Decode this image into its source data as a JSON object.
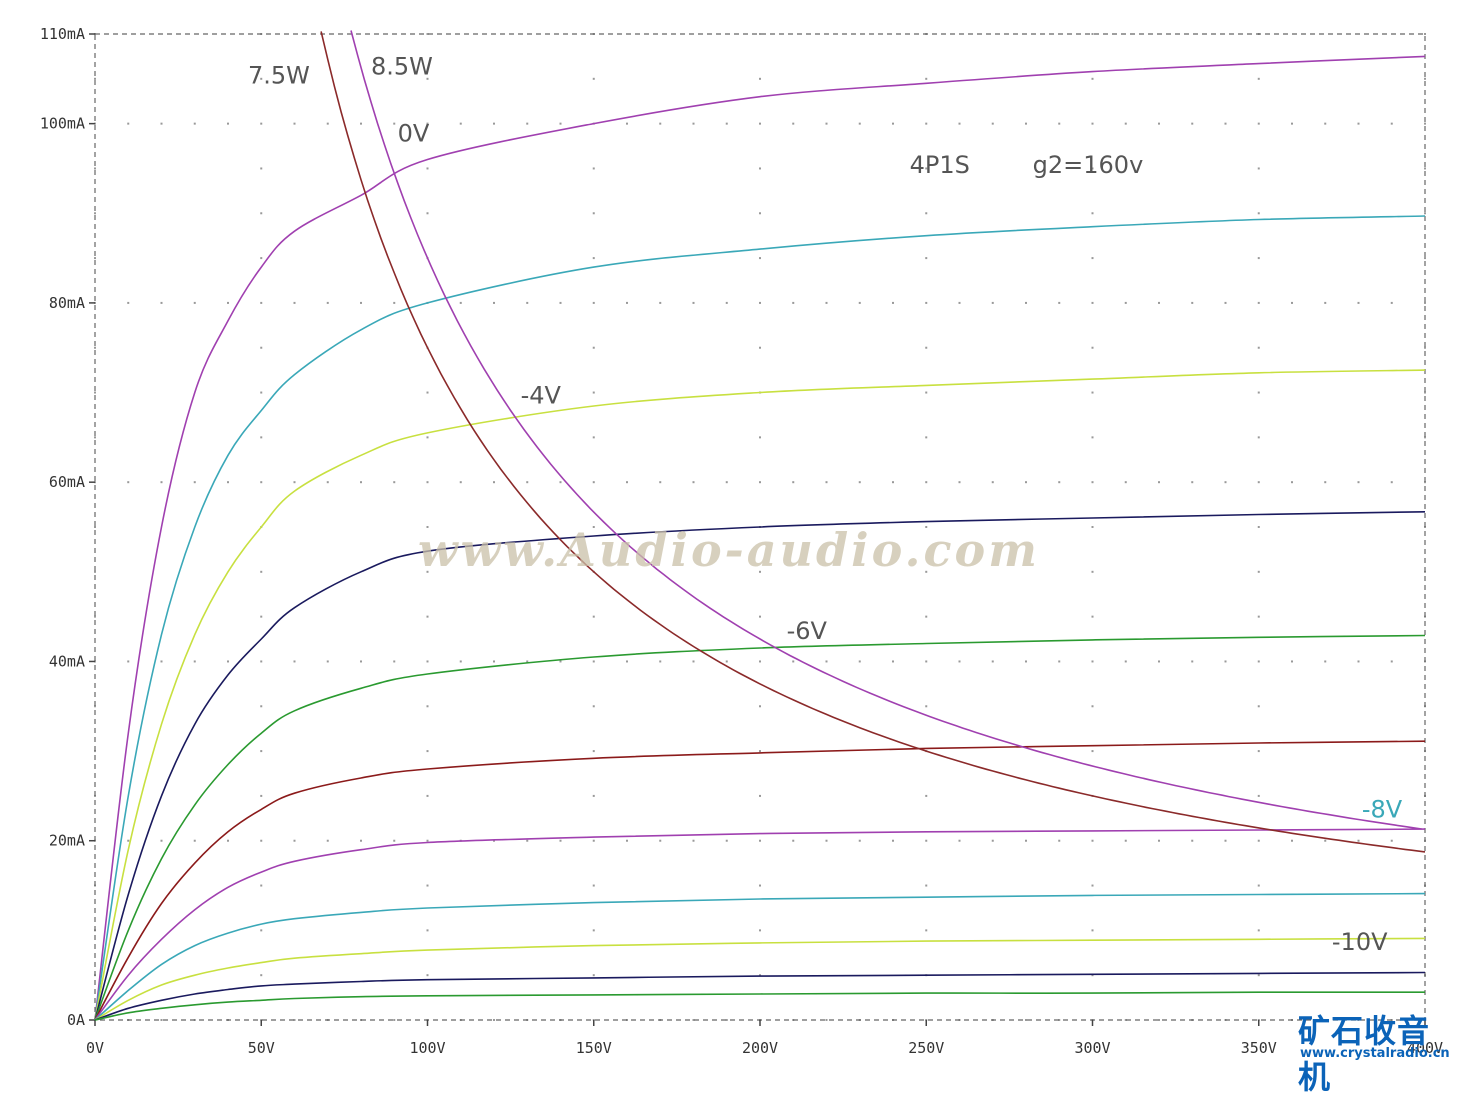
{
  "chart_data": {
    "type": "line",
    "title": "4P1S",
    "subtitle": "g2=160v",
    "xlabel": "",
    "ylabel": "",
    "xlim": [
      0,
      400
    ],
    "ylim": [
      0,
      110
    ],
    "x_ticks": [
      "0V",
      "50V",
      "100V",
      "150V",
      "200V",
      "250V",
      "300V",
      "350V",
      "400V"
    ],
    "y_ticks": [
      {
        "v": 110,
        "label": "110mA"
      },
      {
        "v": 100,
        "label": "100mA"
      },
      {
        "v": 80,
        "label": "80mA"
      },
      {
        "v": 60,
        "label": "60mA"
      },
      {
        "v": 40,
        "label": "40mA"
      },
      {
        "v": 20,
        "label": "20mA"
      },
      {
        "v": 0,
        "label": "0A"
      }
    ],
    "grid": "dotted",
    "series": [
      {
        "name": "0V",
        "color": "#a040b0",
        "points": [
          [
            0,
            0
          ],
          [
            10,
            32
          ],
          [
            20,
            55
          ],
          [
            30,
            70
          ],
          [
            40,
            78
          ],
          [
            50,
            84
          ],
          [
            60,
            88
          ],
          [
            80,
            92
          ],
          [
            100,
            96
          ],
          [
            150,
            100
          ],
          [
            200,
            103
          ],
          [
            250,
            104.5
          ],
          [
            300,
            105.8
          ],
          [
            350,
            106.7
          ],
          [
            400,
            107.5
          ]
        ]
      },
      {
        "color": "#3aa8b8",
        "points": [
          [
            0,
            0
          ],
          [
            10,
            25
          ],
          [
            20,
            43
          ],
          [
            30,
            55
          ],
          [
            40,
            63
          ],
          [
            50,
            68
          ],
          [
            60,
            72
          ],
          [
            80,
            77
          ],
          [
            100,
            80
          ],
          [
            150,
            84
          ],
          [
            200,
            86
          ],
          [
            250,
            87.5
          ],
          [
            300,
            88.5
          ],
          [
            350,
            89.3
          ],
          [
            400,
            89.7
          ]
        ]
      },
      {
        "color": "#c8e040",
        "points": [
          [
            0,
            0
          ],
          [
            10,
            19
          ],
          [
            20,
            33
          ],
          [
            30,
            43
          ],
          [
            40,
            50
          ],
          [
            50,
            55
          ],
          [
            60,
            59
          ],
          [
            80,
            63
          ],
          [
            100,
            65.5
          ],
          [
            150,
            68.5
          ],
          [
            200,
            70
          ],
          [
            250,
            70.8
          ],
          [
            300,
            71.5
          ],
          [
            350,
            72.2
          ],
          [
            400,
            72.5
          ]
        ]
      },
      {
        "color": "#1a1a5e",
        "points": [
          [
            0,
            0
          ],
          [
            10,
            14
          ],
          [
            20,
            25
          ],
          [
            30,
            33
          ],
          [
            40,
            38.5
          ],
          [
            50,
            42.5
          ],
          [
            60,
            46
          ],
          [
            80,
            50
          ],
          [
            100,
            52.3
          ],
          [
            150,
            54
          ],
          [
            200,
            55
          ],
          [
            250,
            55.6
          ],
          [
            300,
            56
          ],
          [
            350,
            56.4
          ],
          [
            400,
            56.7
          ]
        ]
      },
      {
        "name": "-6V",
        "color": "#2a9a30",
        "points": [
          [
            0,
            0
          ],
          [
            10,
            10
          ],
          [
            20,
            18
          ],
          [
            30,
            24
          ],
          [
            40,
            28.5
          ],
          [
            50,
            32
          ],
          [
            60,
            34.5
          ],
          [
            80,
            37
          ],
          [
            100,
            38.6
          ],
          [
            150,
            40.5
          ],
          [
            200,
            41.5
          ],
          [
            250,
            42
          ],
          [
            300,
            42.4
          ],
          [
            350,
            42.7
          ],
          [
            400,
            42.9
          ]
        ]
      },
      {
        "color": "#8b1a1a",
        "points": [
          [
            0,
            0
          ],
          [
            10,
            7
          ],
          [
            20,
            13
          ],
          [
            30,
            17.5
          ],
          [
            40,
            21
          ],
          [
            50,
            23.5
          ],
          [
            60,
            25.3
          ],
          [
            80,
            27
          ],
          [
            100,
            28
          ],
          [
            150,
            29.2
          ],
          [
            200,
            29.8
          ],
          [
            250,
            30.3
          ],
          [
            300,
            30.6
          ],
          [
            350,
            30.9
          ],
          [
            400,
            31.1
          ]
        ]
      },
      {
        "name": "-8V",
        "color": "#a040b0",
        "points": [
          [
            0,
            0
          ],
          [
            10,
            5
          ],
          [
            20,
            9
          ],
          [
            30,
            12.3
          ],
          [
            40,
            14.8
          ],
          [
            50,
            16.5
          ],
          [
            60,
            17.7
          ],
          [
            80,
            19
          ],
          [
            100,
            19.8
          ],
          [
            150,
            20.4
          ],
          [
            200,
            20.8
          ],
          [
            250,
            21
          ],
          [
            300,
            21.1
          ],
          [
            350,
            21.2
          ],
          [
            400,
            21.3
          ]
        ]
      },
      {
        "color": "#3aa8b8",
        "points": [
          [
            0,
            0
          ],
          [
            10,
            3.3
          ],
          [
            20,
            6.2
          ],
          [
            30,
            8.3
          ],
          [
            40,
            9.7
          ],
          [
            50,
            10.7
          ],
          [
            60,
            11.3
          ],
          [
            80,
            12
          ],
          [
            100,
            12.5
          ],
          [
            150,
            13.1
          ],
          [
            200,
            13.5
          ],
          [
            250,
            13.7
          ],
          [
            300,
            13.9
          ],
          [
            350,
            14
          ],
          [
            400,
            14.1
          ]
        ]
      },
      {
        "color": "#c8e040",
        "points": [
          [
            0,
            0
          ],
          [
            10,
            2.2
          ],
          [
            20,
            3.9
          ],
          [
            30,
            5
          ],
          [
            40,
            5.8
          ],
          [
            50,
            6.4
          ],
          [
            60,
            6.9
          ],
          [
            80,
            7.4
          ],
          [
            100,
            7.8
          ],
          [
            150,
            8.3
          ],
          [
            200,
            8.6
          ],
          [
            250,
            8.8
          ],
          [
            300,
            8.9
          ],
          [
            350,
            9
          ],
          [
            400,
            9.1
          ]
        ]
      },
      {
        "name": "-10V",
        "color": "#1a1a5e",
        "points": [
          [
            0,
            0
          ],
          [
            10,
            1.3
          ],
          [
            20,
            2.2
          ],
          [
            30,
            2.9
          ],
          [
            40,
            3.4
          ],
          [
            50,
            3.8
          ],
          [
            60,
            4
          ],
          [
            80,
            4.3
          ],
          [
            100,
            4.5
          ],
          [
            150,
            4.7
          ],
          [
            200,
            4.9
          ],
          [
            250,
            5
          ],
          [
            300,
            5.1
          ],
          [
            350,
            5.2
          ],
          [
            400,
            5.3
          ]
        ]
      },
      {
        "color": "#2a9a30",
        "points": [
          [
            0,
            0
          ],
          [
            10,
            0.8
          ],
          [
            20,
            1.3
          ],
          [
            30,
            1.7
          ],
          [
            40,
            2
          ],
          [
            50,
            2.2
          ],
          [
            60,
            2.4
          ],
          [
            80,
            2.6
          ],
          [
            100,
            2.7
          ],
          [
            150,
            2.8
          ],
          [
            200,
            2.9
          ],
          [
            250,
            3
          ],
          [
            300,
            3
          ],
          [
            350,
            3.1
          ],
          [
            400,
            3.1
          ]
        ]
      }
    ],
    "power_curves": [
      {
        "name": "7.5W",
        "watts": 7.5,
        "color": "#8b2a2a",
        "x_from": 68,
        "x_to": 400
      },
      {
        "name": "8.5W",
        "watts": 8.5,
        "color": "#a040b0",
        "x_from": 77,
        "x_to": 400
      }
    ],
    "annotations": [
      {
        "text": "7.5W",
        "x": 46,
        "y": 104.5,
        "color": "#555555"
      },
      {
        "text": "8.5W",
        "x": 83,
        "y": 105.5,
        "color": "#555555"
      },
      {
        "text": "0V",
        "x": 91,
        "y": 98,
        "color": "#555555"
      },
      {
        "text": "-4V",
        "x": 128,
        "y": 68.8,
        "color": "#555555"
      },
      {
        "text": "-6V",
        "x": 208,
        "y": 42.5,
        "color": "#555555"
      },
      {
        "text": "-8V",
        "x": 381,
        "y": 22.6,
        "color": "#3aa8b8"
      },
      {
        "text": "-10V",
        "x": 372,
        "y": 7.8,
        "color": "#555555"
      },
      {
        "text": "4P1S",
        "x": 245,
        "y": 94.5,
        "color": "#555555"
      },
      {
        "text": "g2=160v",
        "x": 282,
        "y": 94.5,
        "color": "#555555"
      }
    ],
    "watermark": "www.Audio-audio.com"
  },
  "logo": {
    "title": "矿石收音机",
    "url": "www.crystalradio.cn",
    "color": "#0b63b8"
  }
}
